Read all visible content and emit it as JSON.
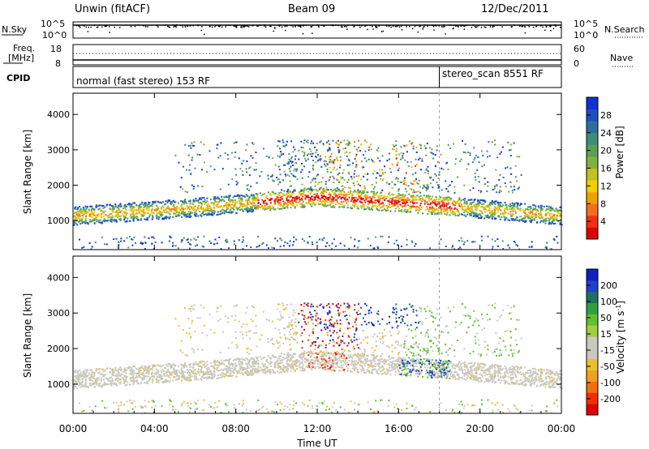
{
  "header": {
    "station": "Unwin (fitACF)",
    "beam": "Beam 09",
    "date": "12/Dec/2011"
  },
  "top_panels": {
    "nsky_label": "N.Sky",
    "nsky_ticks": [
      "10^5",
      "10^0"
    ],
    "nsky_right_ticks": [
      "10^5",
      "10^0"
    ],
    "nsearch_label": "N.Search",
    "freq_label_1": "Freq.",
    "freq_label_2": "[MHz]",
    "freq_ticks": [
      "18",
      "8"
    ],
    "nave_ticks": [
      "60",
      "0"
    ],
    "nave_label": "Nave",
    "cpid_label": "CPID",
    "cpid_mode_1": "normal (fast stereo) 153 RF",
    "cpid_mode_2": "stereo_scan 8551 RF",
    "mode_change_time": "18:00"
  },
  "chart_data": [
    {
      "type": "heatmap",
      "title": "",
      "xlabel": "",
      "ylabel": "Slant Range [km]",
      "xlim": [
        "00:00",
        "00:00"
      ],
      "ylim": [
        180,
        4600
      ],
      "y_ticks": [
        "1000",
        "2000",
        "3000",
        "4000"
      ],
      "colorbar": {
        "label": "Power [dB]",
        "ticks": [
          "4",
          "8",
          "12",
          "16",
          "20",
          "24",
          "28"
        ],
        "colors": [
          "#1030d8",
          "#2050c0",
          "#2f6f9c",
          "#3f8f78",
          "#5aa050",
          "#80b040",
          "#c0c020",
          "#f0d000",
          "#f0a000",
          "#f07020",
          "#f03010",
          "#e00000"
        ]
      }
    },
    {
      "type": "heatmap",
      "title": "",
      "xlabel": "Time UT",
      "ylabel": "Slant Range [km]",
      "xlim": [
        "00:00",
        "00:00"
      ],
      "ylim": [
        180,
        4600
      ],
      "x_ticks": [
        "00:00",
        "04:00",
        "08:00",
        "12:00",
        "16:00",
        "20:00",
        "00:00"
      ],
      "y_ticks": [
        "1000",
        "2000",
        "3000",
        "4000"
      ],
      "colorbar": {
        "label": "Velocity [m s^-1]",
        "ticks": [
          "200",
          "100",
          "50",
          "15",
          "-15",
          "-50",
          "-100",
          "-200"
        ],
        "colors": [
          "#1020c0",
          "#2040d0",
          "#207060",
          "#30a040",
          "#60c030",
          "#a0d040",
          "#c8c8c0",
          "#c8c8c0",
          "#e8c030",
          "#f0a020",
          "#f07010",
          "#f03000",
          "#e00000"
        ]
      }
    }
  ]
}
